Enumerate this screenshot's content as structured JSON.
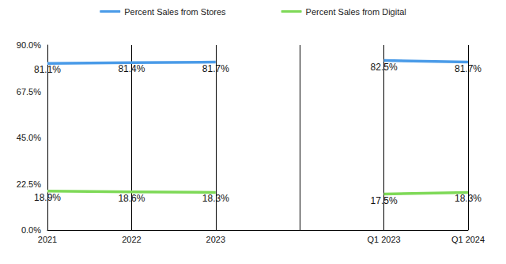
{
  "chart_data": {
    "type": "line",
    "categories": [
      "2021",
      "2022",
      "2023",
      null,
      "Q1 2023",
      "Q1 2024"
    ],
    "series": [
      {
        "name": "Percent Sales from Stores",
        "color": "#4a9be8",
        "values": [
          81.1,
          81.4,
          81.7,
          null,
          82.5,
          81.7
        ],
        "value_labels": [
          "81.1%",
          "81.4%",
          "81.7%",
          null,
          "82.5%",
          "81.7%"
        ]
      },
      {
        "name": "Percent Sales from Digital",
        "color": "#7ed957",
        "values": [
          18.9,
          18.6,
          18.3,
          null,
          17.5,
          18.3
        ],
        "value_labels": [
          "18.9%",
          "18.6%",
          "18.3%",
          null,
          "17.5%",
          "18.3%"
        ]
      }
    ],
    "ylim": [
      0,
      90
    ],
    "yticks": [
      {
        "value": 0,
        "label": "0.0%"
      },
      {
        "value": 22.5,
        "label": "22.5%"
      },
      {
        "value": 45,
        "label": "45.0%"
      },
      {
        "value": 67.5,
        "label": "67.5%"
      },
      {
        "value": 90,
        "label": "90.0%"
      }
    ],
    "grid": true,
    "legend": "top",
    "data_labels": true
  }
}
